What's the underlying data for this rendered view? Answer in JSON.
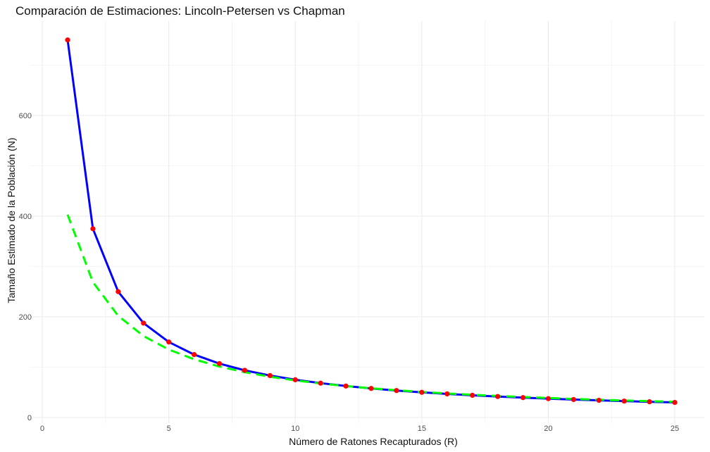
{
  "chart_data": {
    "type": "line",
    "title": "Comparación de Estimaciones: Lincoln-Petersen vs Chapman",
    "xlabel": "Número de Ratones Recapturados (R)",
    "ylabel": "Tamaño Estimado de la Población (N)",
    "xlim": [
      -0.5,
      26.0
    ],
    "ylim": [
      -5,
      790
    ],
    "x_ticks": [
      0,
      5,
      10,
      15,
      20,
      25
    ],
    "y_ticks": [
      0,
      200,
      400,
      600
    ],
    "grid": true,
    "legend": "none",
    "x": [
      1,
      2,
      3,
      4,
      5,
      6,
      7,
      8,
      9,
      10,
      11,
      12,
      13,
      14,
      15,
      16,
      17,
      18,
      19,
      20,
      21,
      22,
      23,
      24,
      25
    ],
    "series": [
      {
        "style": "solid-line-with-points",
        "color": "#0000ff",
        "point_color": "#ff0000",
        "values": [
          750,
          375,
          250,
          187.5,
          150,
          125,
          107.1,
          93.75,
          83.3,
          75,
          68.2,
          62.5,
          57.7,
          53.6,
          50,
          46.9,
          44.1,
          41.7,
          39.5,
          37.5,
          35.7,
          34.1,
          32.6,
          31.25,
          30
        ]
      },
      {
        "style": "dashed-line",
        "color": "#00ff00",
        "values": [
          403,
          269,
          202,
          161.8,
          135,
          115.7,
          101.3,
          90,
          81,
          73.7,
          67.6,
          62.4,
          58,
          54.1,
          50.8,
          47.8,
          45.2,
          42.8,
          40.7,
          38.7,
          36.9,
          35.3,
          33.8,
          32.5,
          31.2
        ]
      }
    ]
  }
}
